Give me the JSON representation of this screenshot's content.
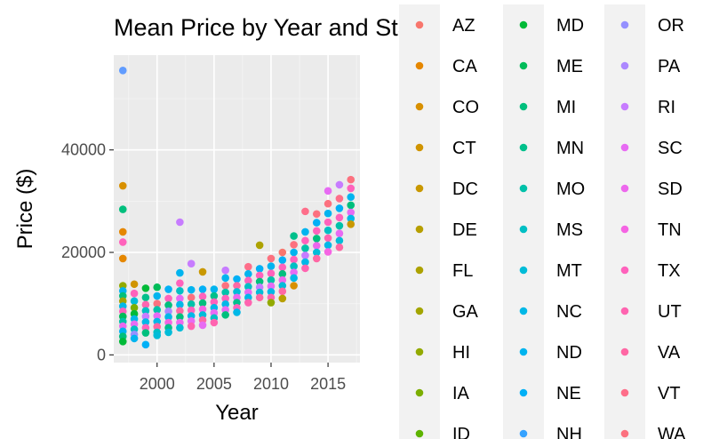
{
  "chart_data": {
    "type": "scatter",
    "title": "Mean Price by Year and State",
    "xlabel": "Year",
    "ylabel": "Price ($)",
    "xlim": [
      1996.2,
      2017.8
    ],
    "ylim": [
      -1500,
      58500
    ],
    "x_ticks": [
      2000,
      2005,
      2010,
      2015
    ],
    "y_ticks": [
      0,
      20000,
      40000
    ],
    "x_tick_labels": [
      "2000",
      "2005",
      "2010",
      "2015"
    ],
    "y_tick_labels": [
      "0",
      "20000",
      "40000"
    ],
    "grid": true,
    "legend_position": "right",
    "legend": [
      {
        "name": "AZ",
        "color": "#F8766D"
      },
      {
        "name": "CA",
        "color": "#E58700"
      },
      {
        "name": "CO",
        "color": "#D89000"
      },
      {
        "name": "CT",
        "color": "#D09400"
      },
      {
        "name": "DC",
        "color": "#C99800"
      },
      {
        "name": "DE",
        "color": "#B79F00"
      },
      {
        "name": "FL",
        "color": "#ADA200"
      },
      {
        "name": "GA",
        "color": "#A3A500"
      },
      {
        "name": "HI",
        "color": "#93AA00"
      },
      {
        "name": "IA",
        "color": "#7CAE00"
      },
      {
        "name": "ID",
        "color": "#5EB300"
      },
      {
        "name": "MD",
        "color": "#00BA38"
      },
      {
        "name": "ME",
        "color": "#00BC59"
      },
      {
        "name": "MI",
        "color": "#00BF7D"
      },
      {
        "name": "MN",
        "color": "#00C08B"
      },
      {
        "name": "MO",
        "color": "#00C1A9"
      },
      {
        "name": "MS",
        "color": "#00BFC4"
      },
      {
        "name": "MT",
        "color": "#00BCD8"
      },
      {
        "name": "NC",
        "color": "#00B8E7"
      },
      {
        "name": "ND",
        "color": "#00B4EF"
      },
      {
        "name": "NE",
        "color": "#00B0F6"
      },
      {
        "name": "NH",
        "color": "#35A2FF"
      },
      {
        "name": "OR",
        "color": "#9590FF"
      },
      {
        "name": "PA",
        "color": "#AC88FF"
      },
      {
        "name": "RI",
        "color": "#C77CFF"
      },
      {
        "name": "SC",
        "color": "#E76BF3"
      },
      {
        "name": "SD",
        "color": "#ED68ED"
      },
      {
        "name": "TN",
        "color": "#F564E3"
      },
      {
        "name": "TX",
        "color": "#FF62BC"
      },
      {
        "name": "UT",
        "color": "#FF64B0"
      },
      {
        "name": "VA",
        "color": "#FF67A4"
      },
      {
        "name": "VT",
        "color": "#FE6E8A"
      },
      {
        "name": "WA",
        "color": "#FC717F"
      }
    ],
    "points": [
      {
        "x": 1997,
        "y": 55500,
        "c": "#619CFF"
      },
      {
        "x": 1997,
        "y": 33000,
        "c": "#D89000"
      },
      {
        "x": 1997,
        "y": 28400,
        "c": "#00BF7D"
      },
      {
        "x": 1997,
        "y": 24000,
        "c": "#E58700"
      },
      {
        "x": 1997,
        "y": 22000,
        "c": "#FF62BC"
      },
      {
        "x": 1997,
        "y": 18800,
        "c": "#E58700"
      },
      {
        "x": 1997,
        "y": 13500,
        "c": "#93AA00"
      },
      {
        "x": 1997,
        "y": 12500,
        "c": "#00B4EF"
      },
      {
        "x": 1997,
        "y": 11500,
        "c": "#00BF7D"
      },
      {
        "x": 1997,
        "y": 10500,
        "c": "#A3A500"
      },
      {
        "x": 1997,
        "y": 9500,
        "c": "#00B8E7"
      },
      {
        "x": 1997,
        "y": 8500,
        "c": "#FF62BC"
      },
      {
        "x": 1997,
        "y": 7500,
        "c": "#00BC59"
      },
      {
        "x": 1997,
        "y": 6500,
        "c": "#00C1A9"
      },
      {
        "x": 1997,
        "y": 5600,
        "c": "#ED68ED"
      },
      {
        "x": 1997,
        "y": 4600,
        "c": "#00B4EF"
      },
      {
        "x": 1997,
        "y": 3600,
        "c": "#00BF7D"
      },
      {
        "x": 1997,
        "y": 2600,
        "c": "#00BA38"
      },
      {
        "x": 1998,
        "y": 13800,
        "c": "#D09400"
      },
      {
        "x": 1998,
        "y": 12000,
        "c": "#FF62BC"
      },
      {
        "x": 1998,
        "y": 10500,
        "c": "#00BCD8"
      },
      {
        "x": 1998,
        "y": 9200,
        "c": "#7CAE00"
      },
      {
        "x": 1998,
        "y": 8000,
        "c": "#00BA38"
      },
      {
        "x": 1998,
        "y": 7000,
        "c": "#00B8E7"
      },
      {
        "x": 1998,
        "y": 6000,
        "c": "#E76BF3"
      },
      {
        "x": 1998,
        "y": 5000,
        "c": "#00BFC4"
      },
      {
        "x": 1998,
        "y": 4000,
        "c": "#9590FF"
      },
      {
        "x": 1998,
        "y": 3200,
        "c": "#00B4EF"
      },
      {
        "x": 1999,
        "y": 13000,
        "c": "#00BA38"
      },
      {
        "x": 1999,
        "y": 11200,
        "c": "#00C08B"
      },
      {
        "x": 1999,
        "y": 9800,
        "c": "#FF64B0"
      },
      {
        "x": 1999,
        "y": 8600,
        "c": "#00BFC4"
      },
      {
        "x": 1999,
        "y": 7500,
        "c": "#C77CFF"
      },
      {
        "x": 1999,
        "y": 6400,
        "c": "#00B8E7"
      },
      {
        "x": 1999,
        "y": 5300,
        "c": "#FF62BC"
      },
      {
        "x": 1999,
        "y": 4300,
        "c": "#00BF7D"
      },
      {
        "x": 1999,
        "y": 2000,
        "c": "#00B0F6"
      },
      {
        "x": 2000,
        "y": 13200,
        "c": "#00BC59"
      },
      {
        "x": 2000,
        "y": 11500,
        "c": "#00B4EF"
      },
      {
        "x": 2000,
        "y": 10000,
        "c": "#FC717F"
      },
      {
        "x": 2000,
        "y": 8800,
        "c": "#00C1A9"
      },
      {
        "x": 2000,
        "y": 7600,
        "c": "#E76BF3"
      },
      {
        "x": 2000,
        "y": 6500,
        "c": "#00B8E7"
      },
      {
        "x": 2000,
        "y": 5500,
        "c": "#FF67A4"
      },
      {
        "x": 2000,
        "y": 4400,
        "c": "#00BFC4"
      },
      {
        "x": 2000,
        "y": 3800,
        "c": "#00BCD8"
      },
      {
        "x": 2001,
        "y": 12800,
        "c": "#00B0F6"
      },
      {
        "x": 2001,
        "y": 11000,
        "c": "#FF62BC"
      },
      {
        "x": 2001,
        "y": 9700,
        "c": "#00BF7D"
      },
      {
        "x": 2001,
        "y": 8500,
        "c": "#AC88FF"
      },
      {
        "x": 2001,
        "y": 7400,
        "c": "#00B8E7"
      },
      {
        "x": 2001,
        "y": 6300,
        "c": "#F564E3"
      },
      {
        "x": 2001,
        "y": 5300,
        "c": "#00C08B"
      },
      {
        "x": 2001,
        "y": 4400,
        "c": "#00BCD8"
      },
      {
        "x": 2002,
        "y": 25900,
        "c": "#C77CFF"
      },
      {
        "x": 2002,
        "y": 16000,
        "c": "#00B4EF"
      },
      {
        "x": 2002,
        "y": 14000,
        "c": "#FF62BC"
      },
      {
        "x": 2002,
        "y": 12500,
        "c": "#00BFC4"
      },
      {
        "x": 2002,
        "y": 11000,
        "c": "#E76BF3"
      },
      {
        "x": 2002,
        "y": 9800,
        "c": "#00B8E7"
      },
      {
        "x": 2002,
        "y": 8600,
        "c": "#FF67A4"
      },
      {
        "x": 2002,
        "y": 7400,
        "c": "#00BF7D"
      },
      {
        "x": 2002,
        "y": 6300,
        "c": "#ED68ED"
      },
      {
        "x": 2002,
        "y": 5300,
        "c": "#00BCD8"
      },
      {
        "x": 2003,
        "y": 17800,
        "c": "#C77CFF"
      },
      {
        "x": 2003,
        "y": 12700,
        "c": "#00B4EF"
      },
      {
        "x": 2003,
        "y": 11200,
        "c": "#FC717F"
      },
      {
        "x": 2003,
        "y": 9900,
        "c": "#00C1A9"
      },
      {
        "x": 2003,
        "y": 8700,
        "c": "#FF62BC"
      },
      {
        "x": 2003,
        "y": 7600,
        "c": "#00B8E7"
      },
      {
        "x": 2003,
        "y": 6600,
        "c": "#E76BF3"
      },
      {
        "x": 2003,
        "y": 5600,
        "c": "#FF64B0"
      },
      {
        "x": 2004,
        "y": 16200,
        "c": "#C99800"
      },
      {
        "x": 2004,
        "y": 12800,
        "c": "#00B0F6"
      },
      {
        "x": 2004,
        "y": 11400,
        "c": "#FF62BC"
      },
      {
        "x": 2004,
        "y": 10100,
        "c": "#00BF7D"
      },
      {
        "x": 2004,
        "y": 8900,
        "c": "#F564E3"
      },
      {
        "x": 2004,
        "y": 7800,
        "c": "#00BCD8"
      },
      {
        "x": 2004,
        "y": 6800,
        "c": "#FF67A4"
      },
      {
        "x": 2004,
        "y": 5800,
        "c": "#E76BF3"
      },
      {
        "x": 2005,
        "y": 12800,
        "c": "#00B4EF"
      },
      {
        "x": 2005,
        "y": 11500,
        "c": "#00C08B"
      },
      {
        "x": 2005,
        "y": 10300,
        "c": "#FF62BC"
      },
      {
        "x": 2005,
        "y": 9200,
        "c": "#00B8E7"
      },
      {
        "x": 2005,
        "y": 8200,
        "c": "#E76BF3"
      },
      {
        "x": 2005,
        "y": 7200,
        "c": "#00BFC4"
      },
      {
        "x": 2005,
        "y": 6300,
        "c": "#FF64B0"
      },
      {
        "x": 2006,
        "y": 16500,
        "c": "#C77CFF"
      },
      {
        "x": 2006,
        "y": 15000,
        "c": "#00B4EF"
      },
      {
        "x": 2006,
        "y": 13500,
        "c": "#FC717F"
      },
      {
        "x": 2006,
        "y": 12200,
        "c": "#00C1A9"
      },
      {
        "x": 2006,
        "y": 11000,
        "c": "#FF62BC"
      },
      {
        "x": 2006,
        "y": 9900,
        "c": "#00B8E7"
      },
      {
        "x": 2006,
        "y": 8800,
        "c": "#E76BF3"
      },
      {
        "x": 2006,
        "y": 7800,
        "c": "#00BF7D"
      },
      {
        "x": 2007,
        "y": 14800,
        "c": "#00B0F6"
      },
      {
        "x": 2007,
        "y": 13500,
        "c": "#FF67A4"
      },
      {
        "x": 2007,
        "y": 12300,
        "c": "#00BCD8"
      },
      {
        "x": 2007,
        "y": 11200,
        "c": "#ED68ED"
      },
      {
        "x": 2007,
        "y": 10200,
        "c": "#00C08B"
      },
      {
        "x": 2007,
        "y": 9200,
        "c": "#FF62BC"
      },
      {
        "x": 2007,
        "y": 8300,
        "c": "#00B8E7"
      },
      {
        "x": 2008,
        "y": 17200,
        "c": "#FE6E8A"
      },
      {
        "x": 2008,
        "y": 15800,
        "c": "#00B4EF"
      },
      {
        "x": 2008,
        "y": 14500,
        "c": "#FF62BC"
      },
      {
        "x": 2008,
        "y": 13300,
        "c": "#00BFC4"
      },
      {
        "x": 2008,
        "y": 12200,
        "c": "#E76BF3"
      },
      {
        "x": 2008,
        "y": 11200,
        "c": "#00B8E7"
      },
      {
        "x": 2008,
        "y": 10200,
        "c": "#FF64B0"
      },
      {
        "x": 2009,
        "y": 21400,
        "c": "#ADA200"
      },
      {
        "x": 2009,
        "y": 16800,
        "c": "#00B0F6"
      },
      {
        "x": 2009,
        "y": 15500,
        "c": "#FF62BC"
      },
      {
        "x": 2009,
        "y": 14300,
        "c": "#00BF7D"
      },
      {
        "x": 2009,
        "y": 13200,
        "c": "#C77CFF"
      },
      {
        "x": 2009,
        "y": 12200,
        "c": "#00BCD8"
      },
      {
        "x": 2009,
        "y": 11200,
        "c": "#FF67A4"
      },
      {
        "x": 2010,
        "y": 18800,
        "c": "#FC717F"
      },
      {
        "x": 2010,
        "y": 17300,
        "c": "#00B4EF"
      },
      {
        "x": 2010,
        "y": 15900,
        "c": "#FF62BC"
      },
      {
        "x": 2010,
        "y": 14600,
        "c": "#00C1A9"
      },
      {
        "x": 2010,
        "y": 13400,
        "c": "#E76BF3"
      },
      {
        "x": 2010,
        "y": 12300,
        "c": "#00B8E7"
      },
      {
        "x": 2010,
        "y": 11200,
        "c": "#FF64B0"
      },
      {
        "x": 2010,
        "y": 10200,
        "c": "#93AA00"
      },
      {
        "x": 2011,
        "y": 20000,
        "c": "#F8766D"
      },
      {
        "x": 2011,
        "y": 18500,
        "c": "#00B0F6"
      },
      {
        "x": 2011,
        "y": 17100,
        "c": "#FF62BC"
      },
      {
        "x": 2011,
        "y": 15800,
        "c": "#00BF7D"
      },
      {
        "x": 2011,
        "y": 14600,
        "c": "#ED68ED"
      },
      {
        "x": 2011,
        "y": 13500,
        "c": "#00BCD8"
      },
      {
        "x": 2011,
        "y": 12400,
        "c": "#FF67A4"
      },
      {
        "x": 2011,
        "y": 11000,
        "c": "#B79F00"
      },
      {
        "x": 2012,
        "y": 23200,
        "c": "#00C08B"
      },
      {
        "x": 2012,
        "y": 21500,
        "c": "#FC717F"
      },
      {
        "x": 2012,
        "y": 20000,
        "c": "#00B4EF"
      },
      {
        "x": 2012,
        "y": 18600,
        "c": "#FF62BC"
      },
      {
        "x": 2012,
        "y": 17300,
        "c": "#00BFC4"
      },
      {
        "x": 2012,
        "y": 16100,
        "c": "#E76BF3"
      },
      {
        "x": 2012,
        "y": 15000,
        "c": "#00B8E7"
      },
      {
        "x": 2012,
        "y": 13500,
        "c": "#D89000"
      },
      {
        "x": 2013,
        "y": 28000,
        "c": "#FE6E8A"
      },
      {
        "x": 2013,
        "y": 24000,
        "c": "#00B4EF"
      },
      {
        "x": 2013,
        "y": 22300,
        "c": "#FF62BC"
      },
      {
        "x": 2013,
        "y": 20800,
        "c": "#00C1A9"
      },
      {
        "x": 2013,
        "y": 19400,
        "c": "#C77CFF"
      },
      {
        "x": 2013,
        "y": 18100,
        "c": "#00B8E7"
      },
      {
        "x": 2013,
        "y": 16900,
        "c": "#FF64B0"
      },
      {
        "x": 2014,
        "y": 27500,
        "c": "#FC717F"
      },
      {
        "x": 2014,
        "y": 25800,
        "c": "#00B0F6"
      },
      {
        "x": 2014,
        "y": 24200,
        "c": "#FF62BC"
      },
      {
        "x": 2014,
        "y": 22700,
        "c": "#00BF7D"
      },
      {
        "x": 2014,
        "y": 21300,
        "c": "#ED68ED"
      },
      {
        "x": 2014,
        "y": 20000,
        "c": "#00BCD8"
      },
      {
        "x": 2014,
        "y": 18800,
        "c": "#FF67A4"
      },
      {
        "x": 2015,
        "y": 32000,
        "c": "#E76BF3"
      },
      {
        "x": 2015,
        "y": 29500,
        "c": "#FC717F"
      },
      {
        "x": 2015,
        "y": 27600,
        "c": "#00B4EF"
      },
      {
        "x": 2015,
        "y": 25900,
        "c": "#FF62BC"
      },
      {
        "x": 2015,
        "y": 24300,
        "c": "#00BFC4"
      },
      {
        "x": 2015,
        "y": 22800,
        "c": "#FF64B0"
      },
      {
        "x": 2015,
        "y": 21400,
        "c": "#00B8E7"
      },
      {
        "x": 2015,
        "y": 20100,
        "c": "#F564E3"
      },
      {
        "x": 2016,
        "y": 33200,
        "c": "#C77CFF"
      },
      {
        "x": 2016,
        "y": 30500,
        "c": "#FE6E8A"
      },
      {
        "x": 2016,
        "y": 28600,
        "c": "#00B0F6"
      },
      {
        "x": 2016,
        "y": 26800,
        "c": "#FF62BC"
      },
      {
        "x": 2016,
        "y": 25200,
        "c": "#00C1A9"
      },
      {
        "x": 2016,
        "y": 23700,
        "c": "#E76BF3"
      },
      {
        "x": 2016,
        "y": 22300,
        "c": "#00BCD8"
      },
      {
        "x": 2016,
        "y": 21000,
        "c": "#FF67A4"
      },
      {
        "x": 2017,
        "y": 34200,
        "c": "#FC717F"
      },
      {
        "x": 2017,
        "y": 32500,
        "c": "#FF62BC"
      },
      {
        "x": 2017,
        "y": 30800,
        "c": "#00B4EF"
      },
      {
        "x": 2017,
        "y": 29200,
        "c": "#00BF7D"
      },
      {
        "x": 2017,
        "y": 27800,
        "c": "#E76BF3"
      },
      {
        "x": 2017,
        "y": 26600,
        "c": "#00B8E7"
      },
      {
        "x": 2017,
        "y": 25500,
        "c": "#C99800"
      }
    ]
  }
}
